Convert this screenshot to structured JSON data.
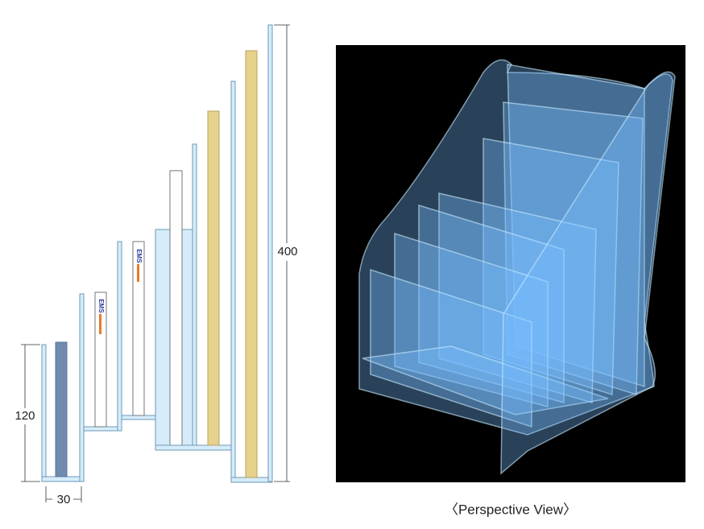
{
  "dimensions": {
    "height_small": 120,
    "width": 30,
    "height_total": 400
  },
  "logos": [
    "EMS",
    "EMS"
  ],
  "caption": "〈Perspective View〉"
}
